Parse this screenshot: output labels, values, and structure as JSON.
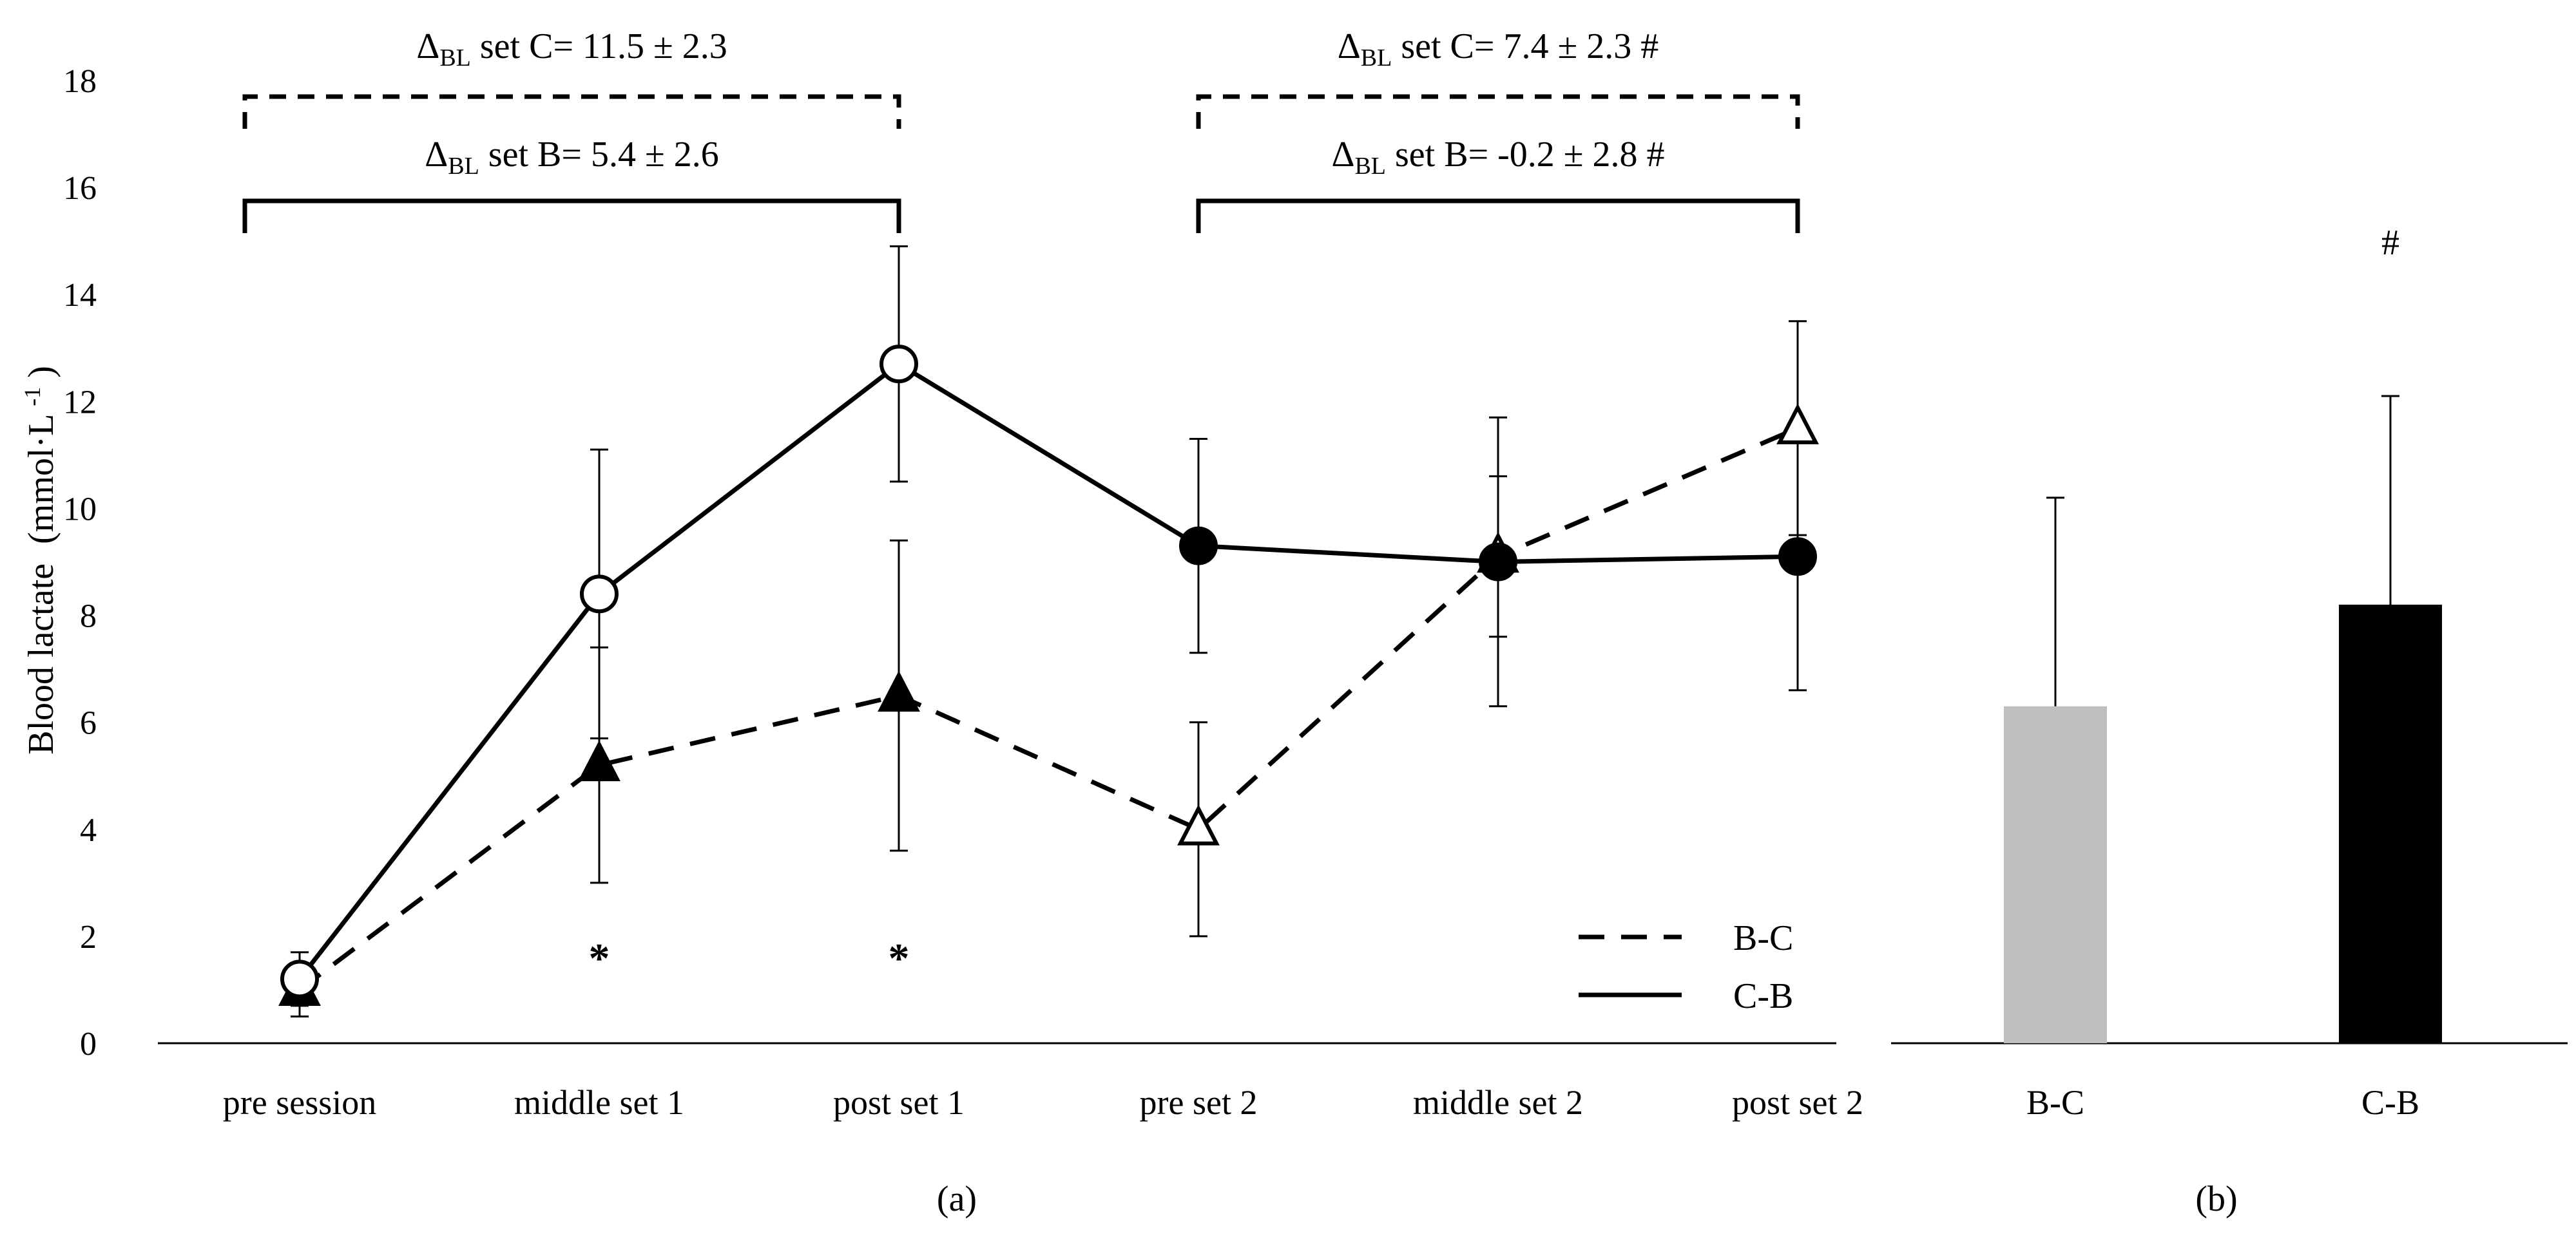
{
  "chart_data": [
    {
      "type": "line",
      "panel_label": "(a)",
      "ylabel": "Blood lactate",
      "yunit_main": "(mmol·L",
      "yunit_sup": "-1",
      "yunit_close": ")",
      "ylim": [
        0,
        18
      ],
      "yticks": [
        0,
        2,
        4,
        6,
        8,
        10,
        12,
        14,
        16,
        18
      ],
      "categories": [
        "pre session",
        "middle set 1",
        "post set 1",
        "pre set 2",
        "middle set 2",
        "post set 2"
      ],
      "legend_position": "bottom-right",
      "series": [
        {
          "name": "B-C",
          "line_style": "dashed",
          "values": [
            1.0,
            5.2,
            6.5,
            4.0,
            9.1,
            11.5
          ],
          "errors": [
            0.5,
            2.2,
            2.9,
            2.0,
            1.5,
            2.0
          ],
          "markers": [
            "triangle-filled",
            "triangle-filled",
            "triangle-filled",
            "triangle-open",
            "triangle-open",
            "triangle-open"
          ]
        },
        {
          "name": "C-B",
          "line_style": "solid",
          "values": [
            1.2,
            8.4,
            12.7,
            9.3,
            9.0,
            9.1
          ],
          "errors": [
            0.5,
            2.7,
            2.2,
            2.0,
            2.7,
            2.5
          ],
          "markers": [
            "circle-open",
            "circle-open",
            "circle-open",
            "circle-filled",
            "circle-filled",
            "circle-filled"
          ]
        }
      ],
      "significance_markers": [
        {
          "category": "middle set 1",
          "text": "*"
        },
        {
          "category": "post set 1",
          "text": "*"
        }
      ],
      "annotations": [
        {
          "delta": "Δ",
          "sub": "BL",
          "text": " set C= 11.5 ± 2.3",
          "from": "pre session",
          "to": "post set 1",
          "bracket": "dashed"
        },
        {
          "delta": "Δ",
          "sub": "BL",
          "text": " set B= 5.4 ± 2.6",
          "from": "pre session",
          "to": "post set 1",
          "bracket": "solid"
        },
        {
          "delta": "Δ",
          "sub": "BL",
          "text": " set C= 7.4 ± 2.3 #",
          "from": "pre set 2",
          "to": "post set 2",
          "bracket": "dashed"
        },
        {
          "delta": "Δ",
          "sub": "BL",
          "text": " set B= -0.2 ± 2.8 #",
          "from": "pre set 2",
          "to": "post set 2",
          "bracket": "solid"
        }
      ]
    },
    {
      "type": "bar",
      "panel_label": "(b)",
      "ylim": [
        0,
        18
      ],
      "categories": [
        "B-C",
        "C-B"
      ],
      "values": [
        6.3,
        8.2
      ],
      "errors": [
        3.9,
        3.9
      ],
      "colors": [
        "#bfbfbf",
        "#000000"
      ],
      "significance_markers": [
        {
          "category": "C-B",
          "text": "#"
        }
      ]
    }
  ]
}
